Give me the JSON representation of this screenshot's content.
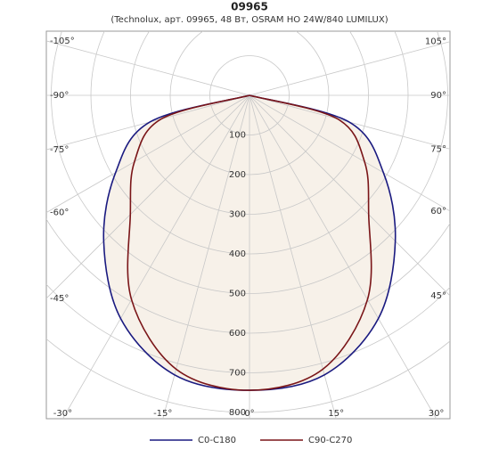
{
  "chart_data": {
    "type": "polar",
    "title": "09965",
    "subtitle": "(Technolux, арт. 09965, 48 Вт, OSRAM HO 24W/840 LUMILUX)",
    "angles": [
      -90,
      -75,
      -60,
      -45,
      -30,
      -15,
      0,
      15,
      30,
      45,
      60,
      75,
      90
    ],
    "series": [
      {
        "name": "C0-C180",
        "color": "#1a1a80",
        "values": [
          0,
          260,
          390,
          520,
          650,
          730,
          744,
          730,
          650,
          520,
          390,
          260,
          0
        ]
      },
      {
        "name": "C90-C270",
        "color": "#7a1518",
        "values": [
          0,
          230,
          335,
          425,
          595,
          715,
          744,
          715,
          595,
          425,
          335,
          230,
          0
        ]
      }
    ],
    "rlim": [
      0,
      800
    ],
    "rticks": [
      100,
      200,
      300,
      400,
      500,
      600,
      700,
      800
    ],
    "angle_ticks": [
      {
        "value": -105,
        "label": "-105°"
      },
      {
        "value": -90,
        "label": "-90°"
      },
      {
        "value": -75,
        "label": "-75°"
      },
      {
        "value": -60,
        "label": "-60°"
      },
      {
        "value": -45,
        "label": "-45°"
      },
      {
        "value": -30,
        "label": "-30°"
      },
      {
        "value": -15,
        "label": "-15°"
      },
      {
        "value": 0,
        "label": "0°"
      },
      {
        "value": 15,
        "label": "15°"
      },
      {
        "value": 30,
        "label": "30°"
      },
      {
        "value": 45,
        "label": "45°"
      },
      {
        "value": 60,
        "label": "60°"
      },
      {
        "value": 75,
        "label": "75°"
      },
      {
        "value": 90,
        "label": "90°"
      },
      {
        "value": 105,
        "label": "105°"
      }
    ],
    "grid": true
  }
}
